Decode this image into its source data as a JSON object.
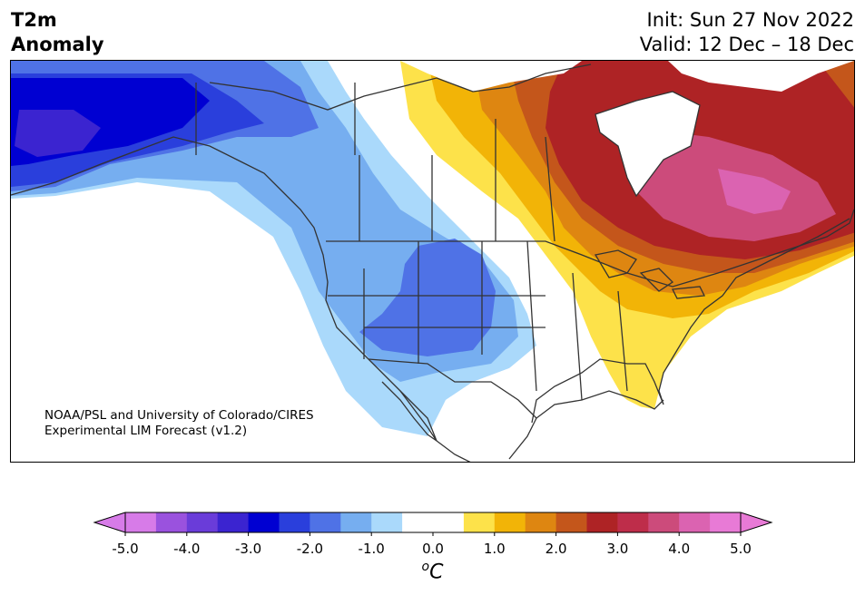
{
  "header": {
    "variable": "T2m",
    "field": "Anomaly",
    "init": "Init: Sun 27 Nov 2022",
    "valid": "Valid: 12 Dec – 18 Dec"
  },
  "credit": {
    "line1": "NOAA/PSL and University of Colorado/CIRES",
    "line2": "Experimental LIM Forecast (v1.2)"
  },
  "colorbar": {
    "unit_prefix": "o",
    "unit_main": "C",
    "ticks": [
      "-5.0",
      "-4.0",
      "-3.0",
      "-2.0",
      "-1.0",
      "0.0",
      "1.0",
      "2.0",
      "3.0",
      "4.0",
      "5.0"
    ],
    "under_color": "#d77be8",
    "over_color": "#e87ad6",
    "colors": [
      "#d77be8",
      "#9a52de",
      "#6a3cd9",
      "#3b24d0",
      "#0000d2",
      "#2a3fdc",
      "#4f72e6",
      "#76aef0",
      "#aad9fb",
      "#ffffff",
      "#ffffff",
      "#fde24a",
      "#f2b407",
      "#de8611",
      "#c4561b",
      "#ae2325",
      "#be2d4a",
      "#cc4b7b",
      "#db63b1",
      "#e87ad6"
    ]
  }
}
